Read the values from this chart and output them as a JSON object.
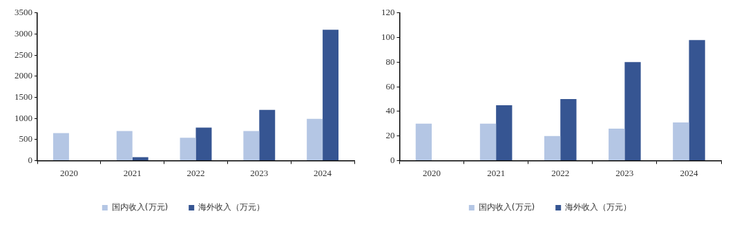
{
  "chart_data": [
    {
      "type": "bar",
      "categories": [
        "2020",
        "2021",
        "2022",
        "2023",
        "2024"
      ],
      "series": [
        {
          "name": "国内收入(万元)",
          "color": "#b4c6e4",
          "values": [
            650,
            700,
            540,
            700,
            990
          ]
        },
        {
          "name": "海外收入（万元）",
          "color": "#365592",
          "values": [
            null,
            80,
            780,
            1200,
            3100
          ]
        }
      ],
      "ylim": [
        0,
        3500
      ],
      "yticks": [
        0,
        500,
        1000,
        1500,
        2000,
        2500,
        3000,
        3500
      ],
      "grid": false,
      "legend": "bottom"
    },
    {
      "type": "bar",
      "categories": [
        "2020",
        "2021",
        "2022",
        "2023",
        "2024"
      ],
      "series": [
        {
          "name": "国内收入(万元)",
          "color": "#b4c6e4",
          "values": [
            30,
            30,
            20,
            26,
            31
          ]
        },
        {
          "name": "海外收入（万元）",
          "color": "#365592",
          "values": [
            null,
            45,
            50,
            80,
            98
          ]
        }
      ],
      "ylim": [
        0,
        120
      ],
      "yticks": [
        0,
        20,
        40,
        60,
        80,
        100,
        120
      ],
      "grid": false,
      "legend": "bottom"
    }
  ]
}
